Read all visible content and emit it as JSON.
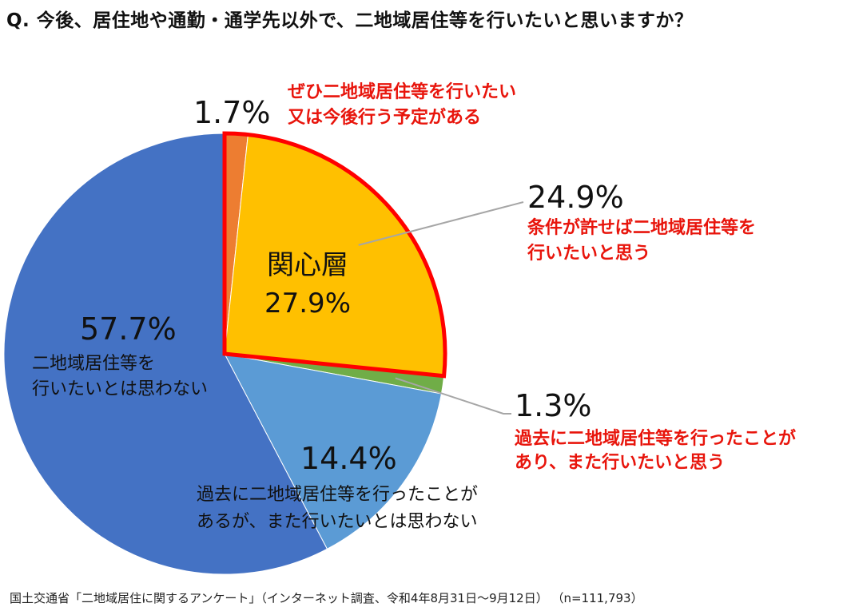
{
  "title": "Q. 今後、居住地や通勤・通学先以外で、二地域居住等を行いたいと思いますか？",
  "footer": "国土交通省「二地域居住に関するアンケート」（インターネット調査、令和4年8月31日～9月12日） （n=111,793）",
  "chart_data": {
    "type": "pie",
    "title": "Q. 今後、居住地や通勤・通学先以外で、二地域居住等を行いたいと思いますか？",
    "unit": "%",
    "slices": [
      {
        "value": 1.7,
        "value_label": "1.7%",
        "label_lines": [
          "ぜひ二地域居住等を行いたい",
          "又は今後行う予定がある"
        ],
        "color": "#ed7d31"
      },
      {
        "value": 24.9,
        "value_label": "24.9%",
        "label_lines": [
          "条件が許せば二地域居住等を",
          "行いたいと思う"
        ],
        "color": "#ffc000"
      },
      {
        "value": 1.3,
        "value_label": "1.3%",
        "label_lines": [
          "過去に二地域居住等を行ったことが",
          "あり、また行いたいと思う"
        ],
        "color": "#70ad47"
      },
      {
        "value": 14.4,
        "value_label": "14.4%",
        "label_lines": [
          "過去に二地域居住等を行ったことが",
          "あるが、また行いたいとは思わない"
        ],
        "color": "#5b9bd5"
      },
      {
        "value": 57.7,
        "value_label": "57.7%",
        "label_lines": [
          "二地域居住等を",
          "行いたいとは思わない"
        ],
        "color": "#4472c4"
      }
    ],
    "highlight_group": {
      "name": "関心層",
      "value": 27.9,
      "value_label": "27.9%",
      "border_color": "#ff0000",
      "label_color": "#ffffff"
    }
  }
}
